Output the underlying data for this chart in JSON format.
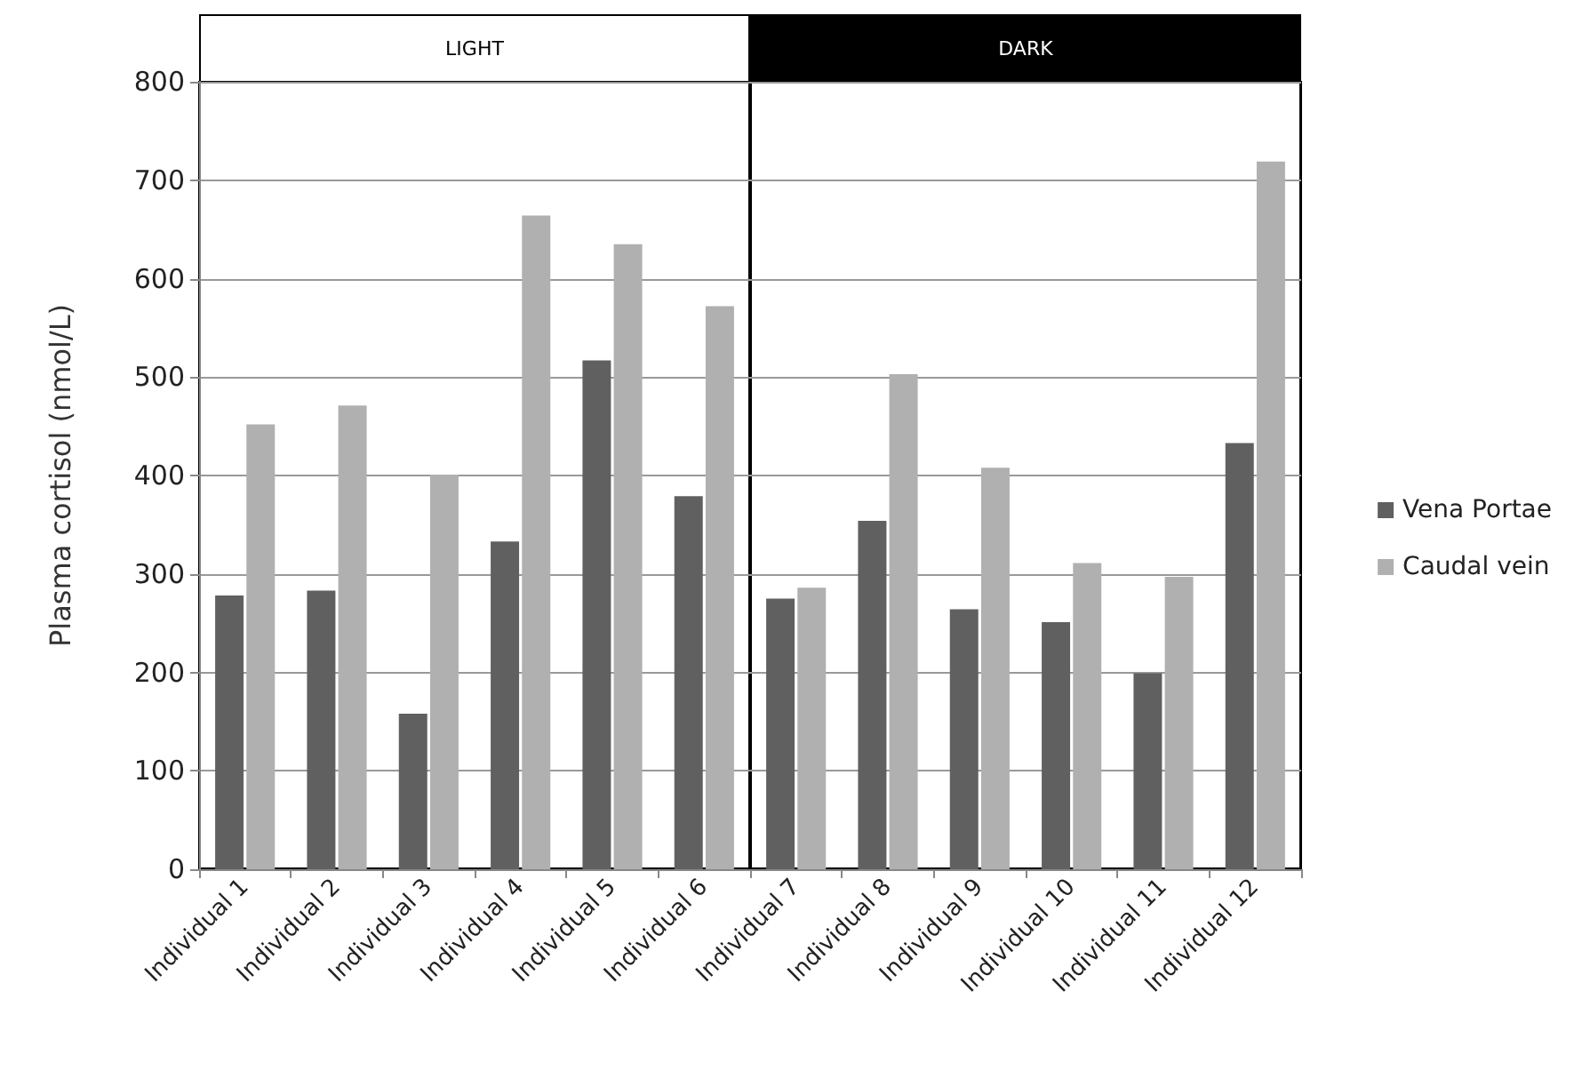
{
  "chart_data": {
    "type": "bar",
    "ylabel": "Plasma cortisol (nmol/L)",
    "categories": [
      "Individual 1",
      "Individual 2",
      "Individual 3",
      "Individual 4",
      "Individual 5",
      "Individual 6",
      "Individual 7",
      "Individual 8",
      "Individual 9",
      "Individual 10",
      "Individual 11",
      "Individual 12"
    ],
    "series": [
      {
        "name": "Vena Portae",
        "color": "#606060",
        "values": [
          278,
          283,
          158,
          333,
          517,
          379,
          275,
          354,
          264,
          251,
          199,
          433
        ]
      },
      {
        "name": "Caudal vein",
        "color": "#b0b0b0",
        "values": [
          452,
          471,
          401,
          664,
          635,
          572,
          286,
          503,
          408,
          311,
          297,
          719
        ]
      }
    ],
    "ylim": [
      0,
      800
    ],
    "yticks": [
      0,
      100,
      200,
      300,
      400,
      500,
      600,
      700,
      800
    ],
    "annotations": [
      "LIGHT",
      "DARK"
    ],
    "grid": "y",
    "legend": "right"
  }
}
